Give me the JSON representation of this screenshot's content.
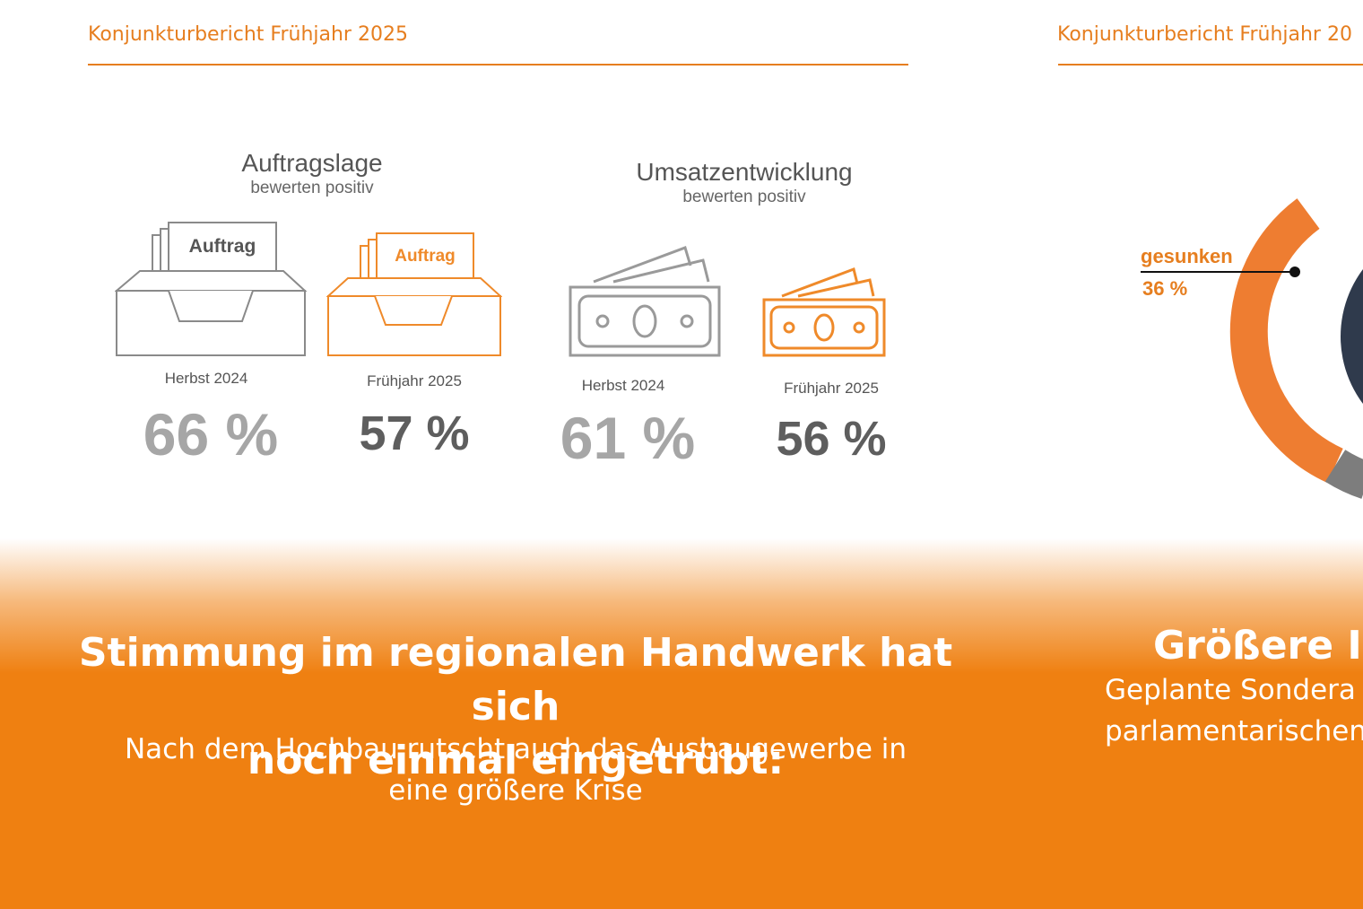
{
  "slides": [
    {
      "header": "Konjunkturbericht Frühjahr 2025",
      "sections": [
        {
          "title": "Auftragslage",
          "subtitle": "bewerten positiv",
          "items": [
            {
              "icon": "order-tray-icon",
              "card_label": "Auftrag",
              "period": "Herbst 2024",
              "value": "66 %"
            },
            {
              "icon": "order-tray-icon",
              "card_label": "Auftrag",
              "period": "Frühjahr 2025",
              "value": "57 %"
            }
          ]
        },
        {
          "title": "Umsatzentwicklung",
          "subtitle": "bewerten positiv",
          "items": [
            {
              "icon": "banknotes-icon",
              "period": "Herbst 2024",
              "value": "61 %"
            },
            {
              "icon": "banknotes-icon",
              "period": "Frühjahr 2025",
              "value": "56 %"
            }
          ]
        }
      ],
      "headline_line1": "Stimmung im regionalen Handwerk hat sich",
      "headline_line2": "noch einmal eingetrübt:",
      "subline_line1": "Nach dem Hochbau rutscht auch das Ausbaugewerbe in",
      "subline_line2": "eine größere Krise"
    },
    {
      "header": "Konjunkturbericht Frühjahr 20",
      "donut_label": "gesunken",
      "donut_value": "36 %",
      "headline": "Größere Inv",
      "subline_line1": "Geplante Sondera",
      "subline_line2": "parlamentarischen"
    }
  ],
  "colors": {
    "accent": "#e67e1f",
    "band": "#ef8011",
    "gray_icon": "#8a8a8a",
    "donut_orange": "#ee7d31",
    "donut_navy": "#2f3a4c",
    "donut_gray": "#7d7d7d"
  }
}
